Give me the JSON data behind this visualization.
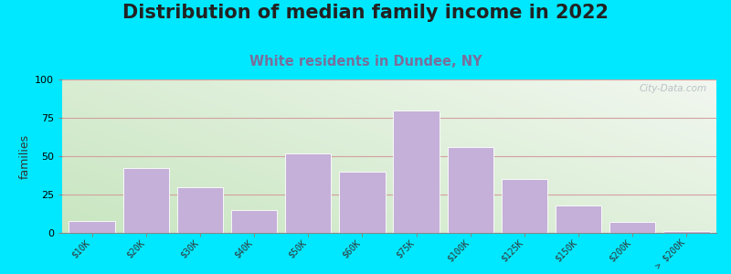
{
  "title": "Distribution of median family income in 2022",
  "subtitle": "White residents in Dundee, NY",
  "categories": [
    "$10K",
    "$20K",
    "$30K",
    "$40K",
    "$50K",
    "$60K",
    "$75K",
    "$100K",
    "$125K",
    "$150K",
    "$200K",
    "> $200K"
  ],
  "values": [
    8,
    42,
    30,
    15,
    52,
    40,
    80,
    56,
    35,
    18,
    7,
    1
  ],
  "bar_color": "#c4b0d8",
  "bar_edge_color": "#ffffff",
  "ylabel": "families",
  "ylim": [
    0,
    100
  ],
  "yticks": [
    0,
    25,
    50,
    75,
    100
  ],
  "background_outer": "#00e8ff",
  "plot_bg_topleft": "#c8e6c0",
  "plot_bg_bottomright": "#f2f7f0",
  "grid_color": "#d4a0a0",
  "title_fontsize": 15,
  "subtitle_fontsize": 10.5,
  "subtitle_color": "#7a6e9a",
  "tick_label_fontsize": 7,
  "watermark": "City-Data.com"
}
